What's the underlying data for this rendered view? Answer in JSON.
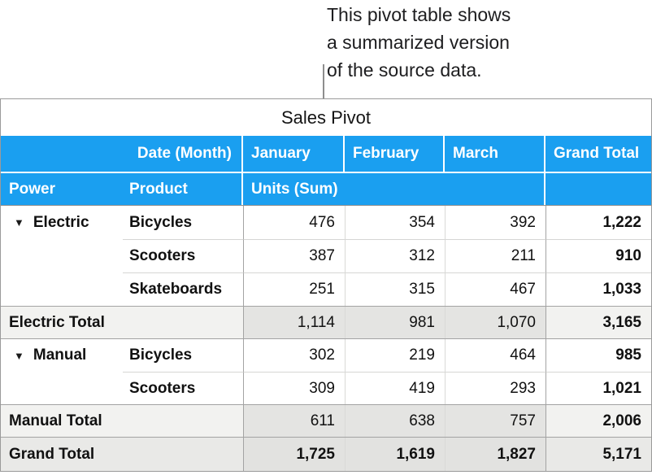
{
  "callout": {
    "text": "This pivot table shows\na summarized version\nof the source data."
  },
  "table": {
    "title": "Sales Pivot",
    "disclosure_icon": "▼",
    "header_row1": {
      "date_label": "Date (Month)",
      "columns": [
        "January",
        "February",
        "March",
        "Grand Total"
      ]
    },
    "header_row2": {
      "power": "Power",
      "product": "Product",
      "units": "Units (Sum)"
    },
    "groups": [
      {
        "power": "Electric",
        "rows": [
          {
            "product": "Bicycles",
            "jan": "476",
            "feb": "354",
            "mar": "392",
            "total": "1,222"
          },
          {
            "product": "Scooters",
            "jan": "387",
            "feb": "312",
            "mar": "211",
            "total": "910"
          },
          {
            "product": "Skateboards",
            "jan": "251",
            "feb": "315",
            "mar": "467",
            "total": "1,033"
          }
        ],
        "total": {
          "label": "Electric Total",
          "jan": "1,114",
          "feb": "981",
          "mar": "1,070",
          "total": "3,165"
        }
      },
      {
        "power": "Manual",
        "rows": [
          {
            "product": "Bicycles",
            "jan": "302",
            "feb": "219",
            "mar": "464",
            "total": "985"
          },
          {
            "product": "Scooters",
            "jan": "309",
            "feb": "419",
            "mar": "293",
            "total": "1,021"
          }
        ],
        "total": {
          "label": "Manual Total",
          "jan": "611",
          "feb": "638",
          "mar": "757",
          "total": "2,006"
        }
      }
    ],
    "grand_total": {
      "label": "Grand Total",
      "jan": "1,725",
      "feb": "1,619",
      "mar": "1,827",
      "total": "5,171"
    }
  },
  "colors": {
    "header_blue": "#1a9ff0",
    "header_text": "#ffffff",
    "subtotal_label_bg": "#f2f2f0",
    "subtotal_month_bg": "#e4e4e2",
    "grand_row_bg": "#e9e9e7",
    "grand_row_month_bg": "#e2e2e0",
    "grid_dark": "#a3a3a3",
    "grid_light": "#d6d6d4",
    "callout_line": "#8e8e8e"
  }
}
